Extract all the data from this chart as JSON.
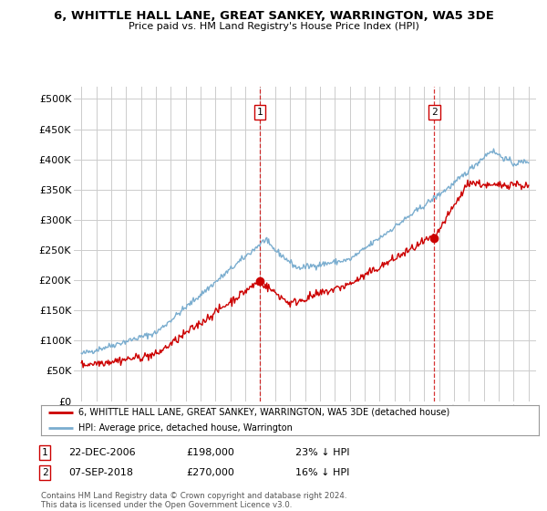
{
  "title": "6, WHITTLE HALL LANE, GREAT SANKEY, WARRINGTON, WA5 3DE",
  "subtitle": "Price paid vs. HM Land Registry's House Price Index (HPI)",
  "ytick_vals": [
    0,
    50000,
    100000,
    150000,
    200000,
    250000,
    300000,
    350000,
    400000,
    450000,
    500000
  ],
  "ylim": [
    0,
    520000
  ],
  "xlim_start": 1994.5,
  "xlim_end": 2025.5,
  "sale1_date": 2006.97,
  "sale1_price": 198000,
  "sale2_date": 2018.68,
  "sale2_price": 270000,
  "legend_entry1": "6, WHITTLE HALL LANE, GREAT SANKEY, WARRINGTON, WA5 3DE (detached house)",
  "legend_entry2": "HPI: Average price, detached house, Warrington",
  "footer": "Contains HM Land Registry data © Crown copyright and database right 2024.\nThis data is licensed under the Open Government Licence v3.0.",
  "line_color_property": "#cc0000",
  "line_color_hpi": "#7aadcf",
  "vline_color": "#cc0000",
  "background_color": "#ffffff",
  "grid_color": "#cccccc"
}
